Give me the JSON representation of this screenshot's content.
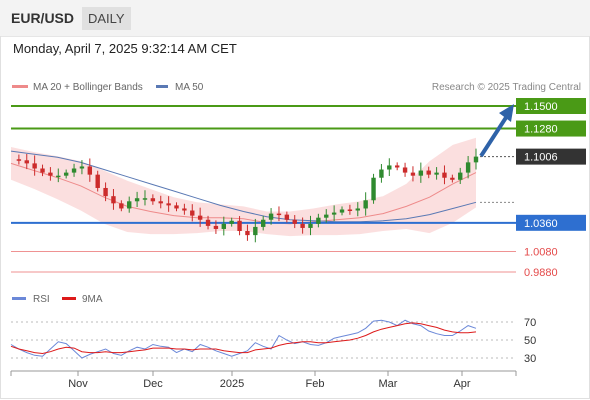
{
  "header": {
    "symbol": "EUR/USD",
    "timeframe": "DAILY"
  },
  "timestamp": "Monday, April 7, 2025 9:32:14 AM CET",
  "legend": {
    "ma20": "MA 20 + Bollinger Bands",
    "ma50": "MA 50"
  },
  "copyright": "Research © 2025 Trading Central",
  "colors": {
    "resistance": "#4a9a16",
    "current": "#333333",
    "support": "#2e6fd0",
    "target": "#e44a4a",
    "ma20": "#ee8a8a",
    "ma50": "#5a79b4",
    "band": "#f9d4d4",
    "rsi": "#6b88d8",
    "rsi_ma": "#dd1a1a",
    "up": "#2f8a2f",
    "down": "#cc2b2b"
  },
  "chart_data": [
    {
      "type": "candlestick",
      "title": "EUR/USD Daily",
      "x_ticks": [
        "Nov",
        "Dec",
        "2025",
        "Feb",
        "Mar",
        "Apr"
      ],
      "levels": [
        {
          "label": "1.1500",
          "value": 1.15,
          "kind": "resistance"
        },
        {
          "label": "1.1280",
          "value": 1.128,
          "kind": "resistance"
        },
        {
          "label": "1.1006",
          "value": 1.1006,
          "kind": "current"
        },
        {
          "label": "1.0360",
          "value": 1.036,
          "kind": "support"
        },
        {
          "label": "1.0080",
          "value": 1.008,
          "kind": "target"
        },
        {
          "label": "0.9880",
          "value": 0.988,
          "kind": "target"
        }
      ],
      "series": [
        {
          "name": "MA 20 + Bollinger Bands",
          "values": [
            1.094,
            1.087,
            1.08,
            1.072,
            1.061,
            1.052,
            1.047,
            1.043,
            1.041,
            1.041,
            1.04,
            1.036,
            1.035,
            1.037,
            1.039,
            1.041,
            1.045,
            1.052,
            1.061,
            1.074,
            1.085
          ]
        },
        {
          "name": "MA 50",
          "values": [
            1.106,
            1.103,
            1.1,
            1.095,
            1.088,
            1.081,
            1.074,
            1.067,
            1.06,
            1.053,
            1.047,
            1.042,
            1.039,
            1.038,
            1.037,
            1.037,
            1.038,
            1.04,
            1.044,
            1.05,
            1.056
          ]
        }
      ],
      "price_path": [
        1.098,
        1.097,
        1.094,
        1.089,
        1.085,
        1.082,
        1.082,
        1.085,
        1.089,
        1.091,
        1.083,
        1.07,
        1.062,
        1.055,
        1.05,
        1.057,
        1.06,
        1.06,
        1.057,
        1.055,
        1.053,
        1.05,
        1.048,
        1.043,
        1.039,
        1.033,
        1.03,
        1.035,
        1.038,
        1.028,
        1.024,
        1.032,
        1.039,
        1.045,
        1.044,
        1.039,
        1.035,
        1.031,
        1.035,
        1.041,
        1.044,
        1.046,
        1.049,
        1.048,
        1.05,
        1.058,
        1.08,
        1.088,
        1.092,
        1.09,
        1.085,
        1.082,
        1.087,
        1.083,
        1.085,
        1.08,
        1.078,
        1.085,
        1.095,
        1.1006
      ],
      "subtitle_panel": "RSI",
      "rsi": {
        "series": [
          {
            "name": "RSI"
          },
          {
            "name": "9MA"
          }
        ],
        "ticks": [
          70,
          50,
          30
        ],
        "rsi_values": [
          45,
          40,
          36,
          33,
          32,
          40,
          48,
          46,
          38,
          30,
          34,
          37,
          40,
          35,
          33,
          38,
          42,
          40,
          45,
          43,
          42,
          36,
          40,
          37,
          45,
          42,
          38,
          35,
          32,
          35,
          38,
          47,
          43,
          40,
          55,
          50,
          46,
          48,
          45,
          44,
          47,
          52,
          54,
          56,
          58,
          63,
          71,
          72,
          70,
          66,
          72,
          68,
          66,
          60,
          57,
          55,
          55,
          60,
          66,
          63
        ],
        "ma_values": [
          43,
          40,
          38,
          36,
          35,
          37,
          40,
          42,
          41,
          37,
          36,
          36,
          37,
          36,
          36,
          37,
          38,
          39,
          41,
          41,
          41,
          40,
          40,
          39,
          40,
          40,
          40,
          38,
          37,
          36,
          36,
          39,
          40,
          41,
          44,
          46,
          47,
          48,
          48,
          47,
          47,
          48,
          49,
          50,
          52,
          55,
          59,
          62,
          64,
          66,
          68,
          69,
          68,
          66,
          64,
          61,
          59,
          58,
          58,
          59
        ]
      }
    }
  ]
}
